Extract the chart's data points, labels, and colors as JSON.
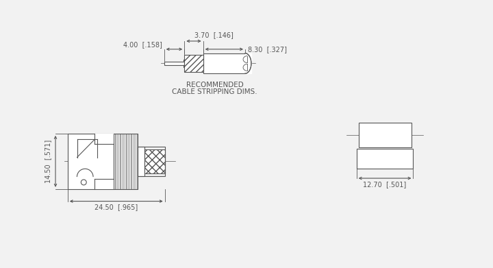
{
  "bg_color": "#f2f2f2",
  "line_color": "#555555",
  "title_text1": "RECOMMENDED",
  "title_text2": "CABLE STRIPPING DIMS.",
  "dim_4_00": "4.00  [.158]",
  "dim_3_70": "3.70  [.146]",
  "dim_8_30": "8.30  [.327]",
  "dim_14_50": "14.50  [.571]",
  "dim_24_50": "24.50  [.965]",
  "dim_12_70": "12.70  [.501]",
  "font_size_dim": 7.0,
  "font_size_title": 7.5
}
